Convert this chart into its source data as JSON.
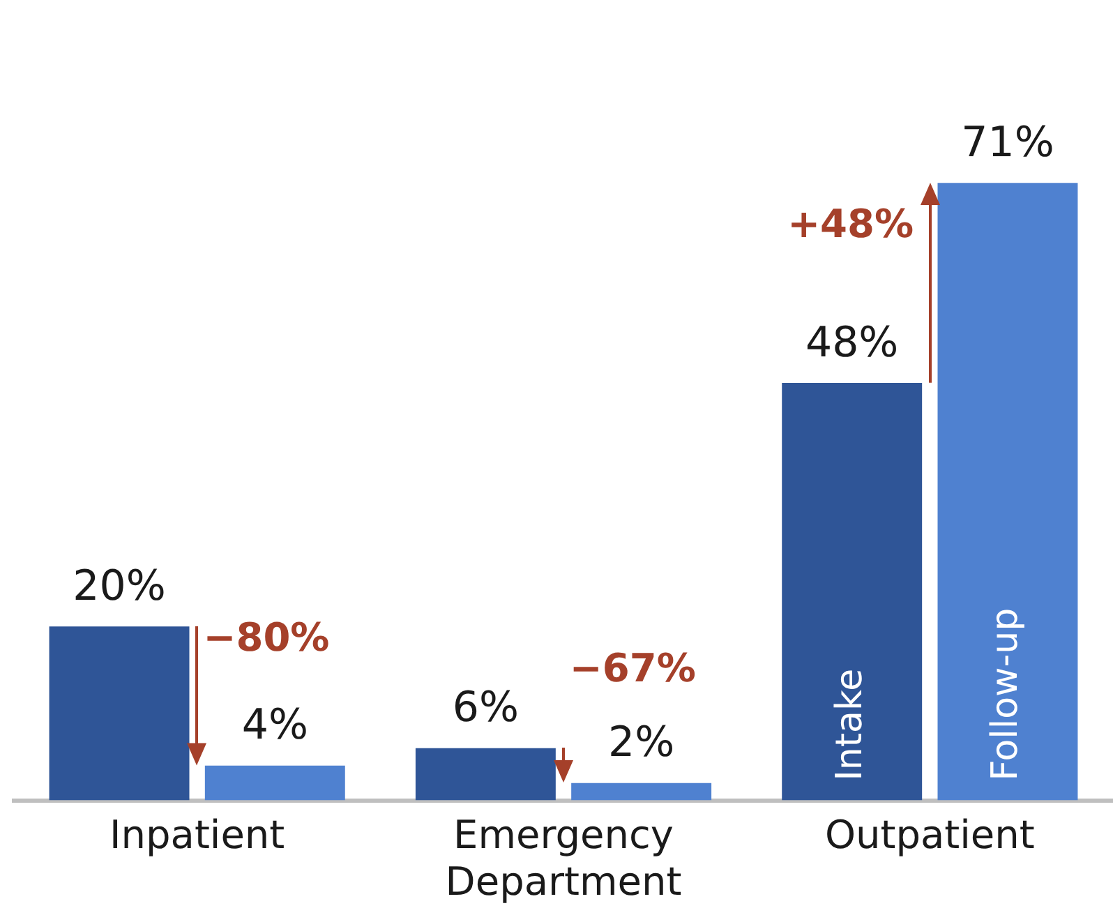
{
  "chart_data": {
    "type": "bar",
    "categories": [
      "Inpatient",
      "Emergency Department",
      "Outpatient"
    ],
    "series": [
      {
        "name": "Intake",
        "color": "#2f5597",
        "values": [
          20,
          6,
          48
        ],
        "value_labels": [
          "20%",
          "6%",
          "48%"
        ]
      },
      {
        "name": "Follow-up",
        "color": "#4f81d0",
        "values": [
          4,
          2,
          71
        ],
        "value_labels": [
          "4%",
          "2%",
          "71%"
        ]
      }
    ],
    "legend": false,
    "grid": false,
    "annotations": [
      "−80%",
      "−67%",
      "+48%"
    ]
  }
}
